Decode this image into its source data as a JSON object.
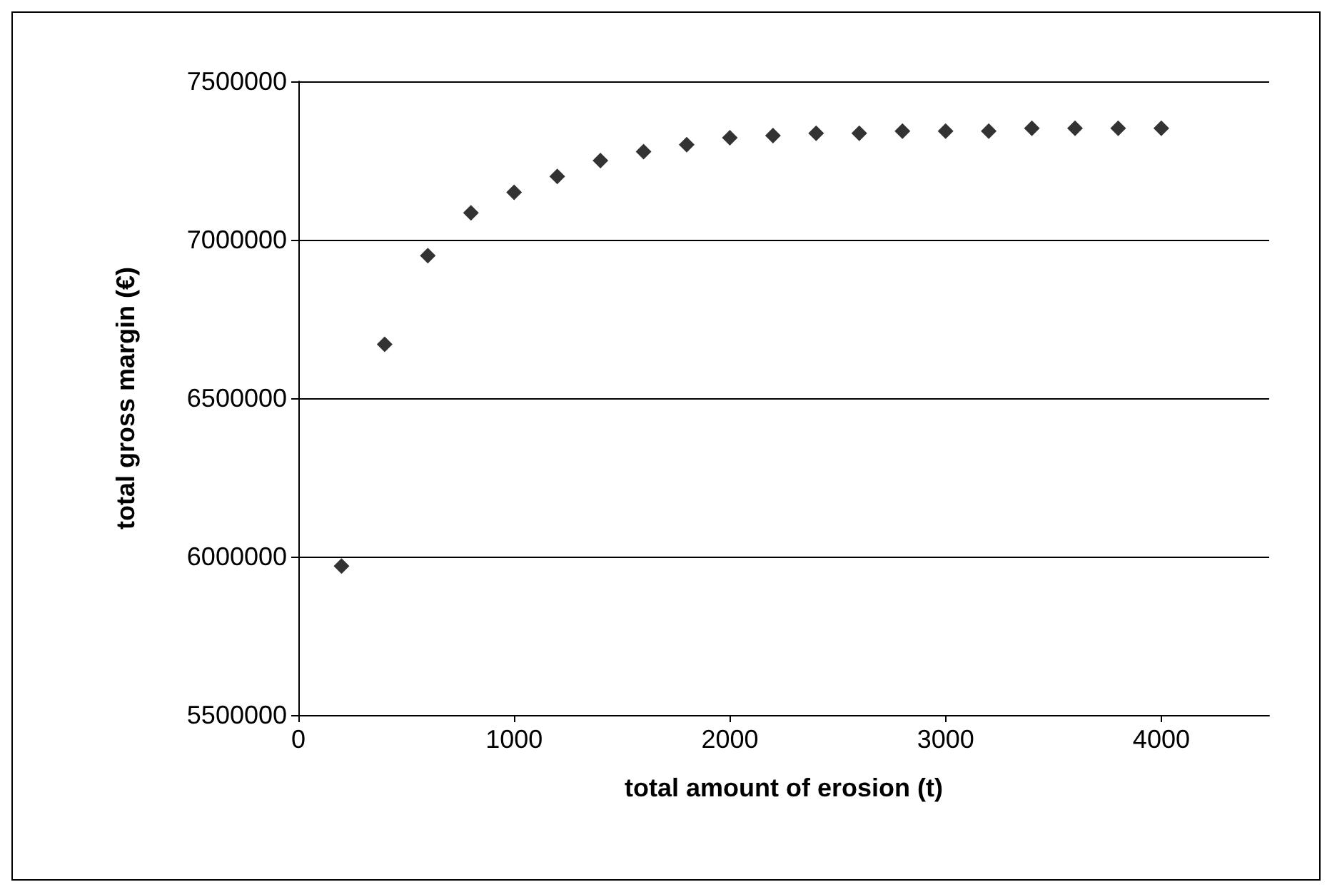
{
  "chart_data": {
    "type": "scatter",
    "xlabel": "total amount of erosion (t)",
    "ylabel": "total gross margin (€)",
    "x": [
      200,
      400,
      600,
      800,
      1000,
      1200,
      1400,
      1600,
      1800,
      2000,
      2200,
      2400,
      2600,
      2800,
      3000,
      3200,
      3400,
      3600,
      3800,
      4000
    ],
    "series": [
      {
        "color": "#000000",
        "values": [
          5970000,
          6670000,
          6950000,
          7085000,
          7150000,
          7200000,
          7250000,
          7278000,
          7300000,
          7322000,
          7329000,
          7336000,
          7336000,
          7343000,
          7343000,
          7343000,
          7352000,
          7352000,
          7352000,
          7352000
        ]
      }
    ],
    "xlim": [
      0,
      4500
    ],
    "xticks": [
      0,
      1000,
      2000,
      3000,
      4000
    ],
    "ylim": [
      5500000,
      7500000
    ],
    "yticks": [
      5500000,
      6000000,
      6500000,
      7000000,
      7500000
    ],
    "grid": "y",
    "marker": "diamond"
  }
}
